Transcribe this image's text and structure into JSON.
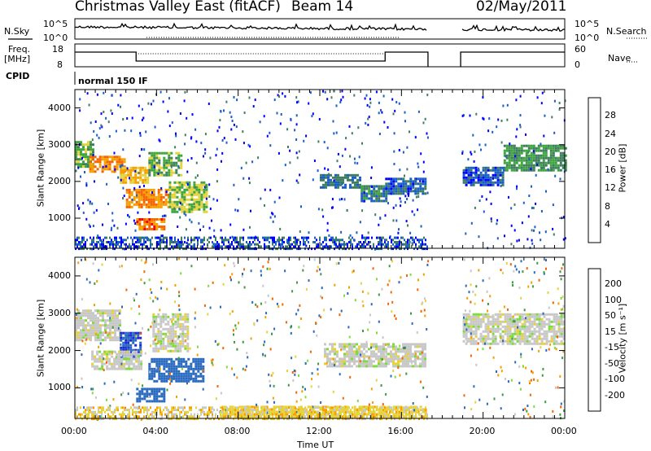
{
  "header": {
    "station": "Christmas Valley East (fitACF)",
    "beam": "Beam 14",
    "date": "02/May/2011"
  },
  "panels": {
    "nsky_label": "N.Sky",
    "nsearch_label": "N.Search",
    "noise_ticks": [
      "10^5",
      "10^0"
    ],
    "freq_label_top": "Freq.",
    "freq_label_bottom": "[MHz]",
    "freq_ticks": [
      "18",
      "8"
    ],
    "nave_label": "Nave",
    "nave_ticks": [
      "60",
      "0"
    ],
    "cpid_label": "CPID",
    "cpid_value": "normal 150 IF"
  },
  "colorbars": {
    "power": {
      "label": "Power [dB]",
      "ticks": [
        "4",
        "8",
        "12",
        "16",
        "20",
        "24",
        "28"
      ],
      "colors": [
        "#0000ff",
        "#1a5fc8",
        "#3f7f5f",
        "#3fa63f",
        "#e6d23c",
        "#f5a000",
        "#f56400",
        "#ff0000"
      ]
    },
    "velocity": {
      "label": "Velocity [m s⁻¹]",
      "ticks": [
        "200",
        "100",
        "50",
        "15",
        "-15",
        "-50",
        "-100",
        "-200"
      ],
      "colors": [
        "#1a2ad6",
        "#2a6abf",
        "#3c9c3c",
        "#7ddc3c",
        "#c8c8c8",
        "#e6d23c",
        "#f5a000",
        "#f56400",
        "#ff0000"
      ]
    }
  },
  "chart_data": {
    "type": "heatmap",
    "xlabel": "Time UT",
    "x_ticks": [
      "00:00",
      "04:00",
      "08:00",
      "12:00",
      "16:00",
      "20:00",
      "00:00"
    ],
    "xlim_hours": [
      0,
      24
    ],
    "ylabel": "Slant Range [km]",
    "y_ticks": [
      1000,
      2000,
      3000,
      4000
    ],
    "ylim": [
      180,
      4500
    ],
    "data_gap_hours": [
      17.3,
      18.9
    ],
    "power_regions": [
      {
        "t0": 0.0,
        "t1": 0.9,
        "r0": 2400,
        "r1": 3100,
        "db": 14
      },
      {
        "t0": 0.7,
        "t1": 2.4,
        "r0": 2250,
        "r1": 2700,
        "db": 24
      },
      {
        "t0": 2.2,
        "t1": 3.6,
        "r0": 2000,
        "r1": 2400,
        "db": 20
      },
      {
        "t0": 3.6,
        "t1": 5.2,
        "r0": 2200,
        "r1": 2800,
        "db": 14
      },
      {
        "t0": 2.5,
        "t1": 4.6,
        "r0": 1300,
        "r1": 1800,
        "db": 24
      },
      {
        "t0": 4.6,
        "t1": 6.4,
        "r0": 1200,
        "r1": 2000,
        "db": 16
      },
      {
        "t0": 3.0,
        "t1": 4.4,
        "r0": 700,
        "r1": 1000,
        "db": 26
      },
      {
        "t0": 12.0,
        "t1": 14.0,
        "r0": 1850,
        "r1": 2200,
        "db": 8
      },
      {
        "t0": 14.0,
        "t1": 15.2,
        "r0": 1500,
        "r1": 1900,
        "db": 10
      },
      {
        "t0": 15.2,
        "t1": 17.2,
        "r0": 1700,
        "r1": 2100,
        "db": 6
      },
      {
        "t0": 21.0,
        "t1": 24.0,
        "r0": 2300,
        "r1": 3000,
        "db": 12
      },
      {
        "t0": 19.0,
        "t1": 21.0,
        "r0": 1900,
        "r1": 2400,
        "db": 6
      }
    ],
    "velocity_regions": [
      {
        "t0": 0.0,
        "t1": 2.2,
        "r0": 2300,
        "r1": 3100,
        "v": 0
      },
      {
        "t0": 2.2,
        "t1": 3.2,
        "r0": 1800,
        "r1": 2500,
        "v": 150
      },
      {
        "t0": 0.8,
        "t1": 3.2,
        "r0": 1500,
        "r1": 2000,
        "v": 0
      },
      {
        "t0": 3.8,
        "t1": 5.5,
        "r0": 2000,
        "r1": 3000,
        "v": 0
      },
      {
        "t0": 3.6,
        "t1": 6.3,
        "r0": 1200,
        "r1": 1800,
        "v": 120
      },
      {
        "t0": 3.0,
        "t1": 4.4,
        "r0": 650,
        "r1": 1000,
        "v": 130
      },
      {
        "t0": 12.2,
        "t1": 17.2,
        "r0": 1600,
        "r1": 2200,
        "v": 0
      },
      {
        "t0": 19.0,
        "t1": 24.0,
        "r0": 2200,
        "r1": 3000,
        "v": 0
      },
      {
        "t0": 7.2,
        "t1": 17.2,
        "r0": 200,
        "r1": 520,
        "v": -40
      }
    ]
  }
}
